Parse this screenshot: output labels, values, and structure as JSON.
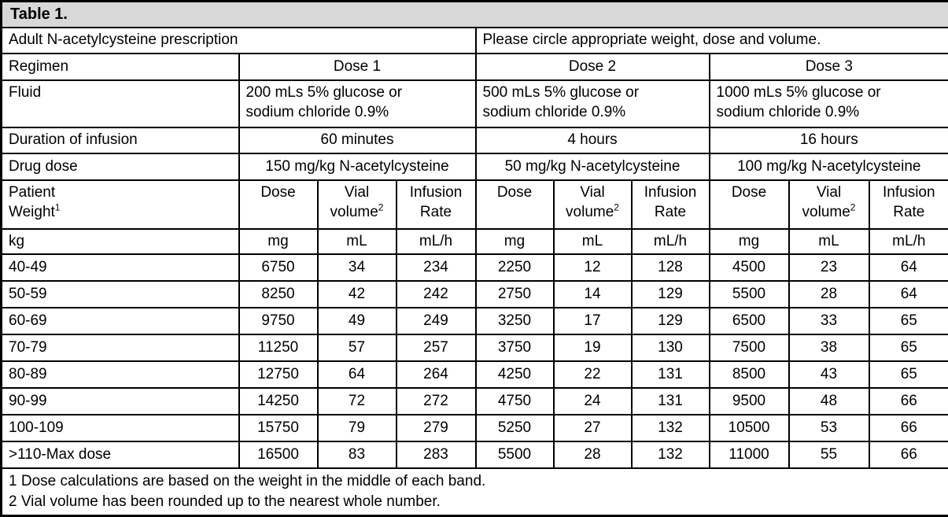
{
  "colors": {
    "title_bar_bg": "#d8d8d8",
    "border": "#000000",
    "text": "#000000",
    "cell_bg": "#ffffff"
  },
  "table": {
    "title": "Table 1.",
    "intro": {
      "left": "Adult N-acetylcysteine prescription",
      "right": "Please circle appropriate weight, dose and volume."
    },
    "regimen": {
      "label": "Regimen",
      "doses": [
        "Dose 1",
        "Dose 2",
        "Dose 3"
      ]
    },
    "fluid": {
      "label": "Fluid",
      "values": [
        "200 mLs 5% glucose or\nsodium chloride 0.9%",
        "500 mLs 5% glucose or\nsodium chloride 0.9%",
        "1000 mLs 5% glucose or\nsodium chloride 0.9%"
      ]
    },
    "duration": {
      "label": "Duration of infusion",
      "values": [
        "60 minutes",
        "4 hours",
        "16 hours"
      ]
    },
    "drug_dose": {
      "label": "Drug dose",
      "values": [
        "150 mg/kg N-acetylcysteine",
        "50 mg/kg N-acetylcysteine",
        "100 mg/kg N-acetylcysteine"
      ]
    },
    "col_headers": {
      "patient": {
        "line1": "Patient",
        "line2": "Weight",
        "sup": "1"
      },
      "dose": "Dose",
      "vial": {
        "line1": "Vial",
        "line2": "volume",
        "sup": "2"
      },
      "infusion": {
        "line1": "Infusion",
        "line2": "Rate"
      }
    },
    "units": {
      "weight": "kg",
      "dose": "mg",
      "vial": "mL",
      "rate": "mL/h"
    },
    "rows": [
      {
        "band": "40-49",
        "values": [
          "6750",
          "34",
          "234",
          "2250",
          "12",
          "128",
          "4500",
          "23",
          "64"
        ]
      },
      {
        "band": "50-59",
        "values": [
          "8250",
          "42",
          "242",
          "2750",
          "14",
          "129",
          "5500",
          "28",
          "64"
        ]
      },
      {
        "band": "60-69",
        "values": [
          "9750",
          "49",
          "249",
          "3250",
          "17",
          "129",
          "6500",
          "33",
          "65"
        ]
      },
      {
        "band": "70-79",
        "values": [
          "11250",
          "57",
          "257",
          "3750",
          "19",
          "130",
          "7500",
          "38",
          "65"
        ]
      },
      {
        "band": "80-89",
        "values": [
          "12750",
          "64",
          "264",
          "4250",
          "22",
          "131",
          "8500",
          "43",
          "65"
        ]
      },
      {
        "band": "90-99",
        "values": [
          "14250",
          "72",
          "272",
          "4750",
          "24",
          "131",
          "9500",
          "48",
          "66"
        ]
      },
      {
        "band": "100-109",
        "values": [
          "15750",
          "79",
          "279",
          "5250",
          "27",
          "132",
          "10500",
          "53",
          "66"
        ]
      },
      {
        "band": ">110-Max dose",
        "values": [
          "16500",
          "83",
          "283",
          "5500",
          "28",
          "132",
          "11000",
          "55",
          "66"
        ]
      }
    ],
    "footnotes": [
      "1 Dose calculations are based on the weight in the middle of each band.",
      "2 Vial volume has been rounded up to the nearest whole number."
    ]
  }
}
